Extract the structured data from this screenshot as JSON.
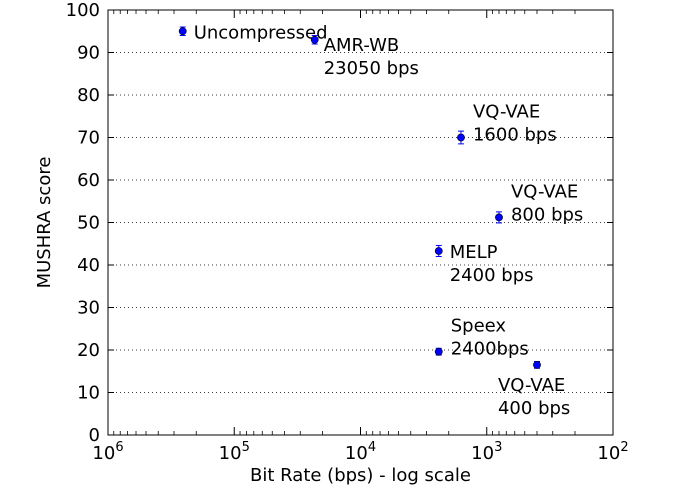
{
  "chart_data": {
    "type": "scatter",
    "title": "",
    "xlabel": "Bit Rate (bps) - log scale",
    "ylabel": "MUSHRA score",
    "x_scale": "log",
    "x_reversed": true,
    "xlim": [
      1000000,
      100
    ],
    "ylim": [
      0,
      100
    ],
    "grid": "y-dotted",
    "x_ticks": [
      {
        "value": 1000000,
        "base": "10",
        "exp": "6"
      },
      {
        "value": 100000,
        "base": "10",
        "exp": "5"
      },
      {
        "value": 10000,
        "base": "10",
        "exp": "4"
      },
      {
        "value": 1000,
        "base": "10",
        "exp": "3"
      },
      {
        "value": 100,
        "base": "10",
        "exp": "2"
      }
    ],
    "y_ticks": [
      0,
      10,
      20,
      30,
      40,
      50,
      60,
      70,
      80,
      90,
      100
    ],
    "color": "#0000ff",
    "points": [
      {
        "name": "uncompressed",
        "x": 256000,
        "y": 95,
        "err": 1.0,
        "label_lines": [
          "Uncompressed"
        ],
        "label_pos": "right"
      },
      {
        "name": "amr-wb",
        "x": 23050,
        "y": 93,
        "err": 1.0,
        "label_lines": [
          "AMR-WB",
          "23050 bps"
        ],
        "label_pos": "below-right"
      },
      {
        "name": "vq-vae-1600",
        "x": 1600,
        "y": 70,
        "err": 1.5,
        "label_lines": [
          "VQ-VAE",
          "1600 bps"
        ],
        "label_pos": "above-right"
      },
      {
        "name": "vq-vae-800",
        "x": 800,
        "y": 51.2,
        "err": 1.3,
        "label_lines": [
          "VQ-VAE",
          "800 bps"
        ],
        "label_pos": "above-right"
      },
      {
        "name": "melp",
        "x": 2400,
        "y": 43.3,
        "err": 1.3,
        "label_lines": [
          "MELP",
          "2400 bps"
        ],
        "label_pos": "right"
      },
      {
        "name": "speex",
        "x": 2400,
        "y": 19.6,
        "err": 0.8,
        "label_lines": [
          "Speex",
          "2400bps"
        ],
        "label_pos": "above-right"
      },
      {
        "name": "vq-vae-400",
        "x": 400,
        "y": 16.5,
        "err": 0.8,
        "label_lines": [
          "VQ-VAE",
          "400 bps"
        ],
        "label_pos": "below"
      }
    ]
  }
}
